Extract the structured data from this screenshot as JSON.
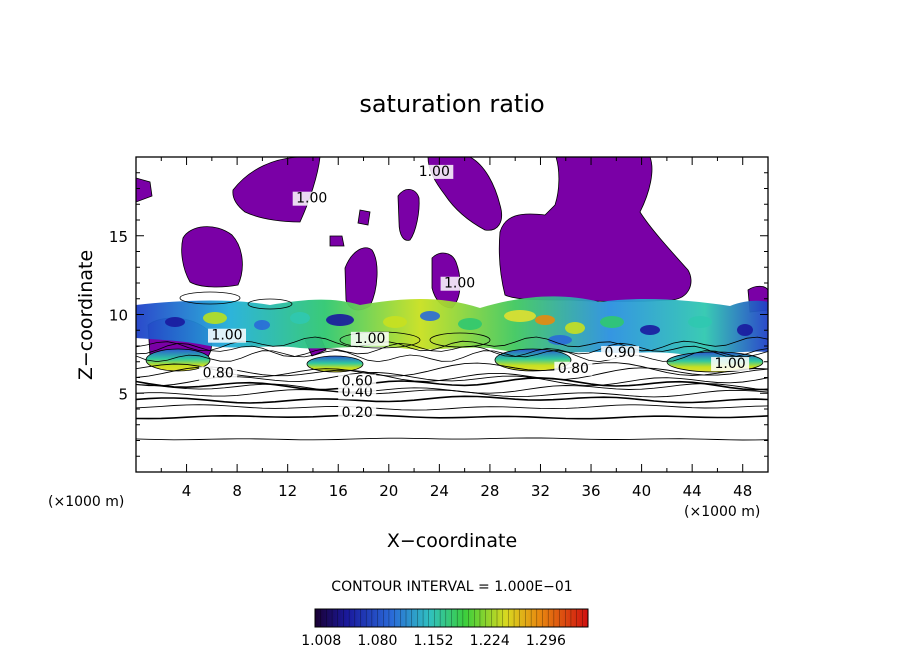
{
  "chart_data": {
    "type": "contour",
    "title": "saturation ratio",
    "xlabel": "X−coordinate",
    "ylabel": "Z−coordinate",
    "x_unit": "(×1000 m)",
    "x_unit_right": "(×1000 m)",
    "xlim": [
      0,
      50
    ],
    "ylim": [
      0,
      20
    ],
    "xticks": [
      4,
      8,
      12,
      16,
      20,
      24,
      28,
      32,
      36,
      40,
      44,
      48
    ],
    "yticks": [
      5,
      10,
      15
    ],
    "contour_interval": "CONTOUR INTERVAL = 1.000E−01",
    "contour_levels": [
      0.1,
      0.2,
      0.3,
      0.4,
      0.5,
      0.6,
      0.7,
      0.8,
      0.9,
      1.0
    ],
    "contour_labels": [
      {
        "text": "0.20",
        "x": 17.5,
        "y": 3.5
      },
      {
        "text": "0.40",
        "x": 17.5,
        "y": 4.8
      },
      {
        "text": "0.60",
        "x": 17.5,
        "y": 5.5
      },
      {
        "text": "0.80",
        "x": 6.5,
        "y": 6.0
      },
      {
        "text": "1.00",
        "x": 7.2,
        "y": 8.4
      },
      {
        "text": "1.00",
        "x": 13.9,
        "y": 17.1
      },
      {
        "text": "1.00",
        "x": 25.6,
        "y": 11.7
      },
      {
        "text": "1.00",
        "x": 23.6,
        "y": 18.8
      },
      {
        "text": "1.00",
        "x": 18.5,
        "y": 8.2
      },
      {
        "text": "0.80",
        "x": 34.6,
        "y": 6.3
      },
      {
        "text": "0.90",
        "x": 38.3,
        "y": 7.3
      },
      {
        "text": "1.00",
        "x": 47.0,
        "y": 6.6
      }
    ],
    "colorbar": {
      "ticks": [
        "1.008",
        "1.080",
        "1.152",
        "1.224",
        "1.296"
      ],
      "min": 1.0,
      "max": 1.35
    },
    "grid": false,
    "legend": "none",
    "colors": {
      "supersaturated_fill": "#7a00a6",
      "line": "#000000"
    }
  }
}
